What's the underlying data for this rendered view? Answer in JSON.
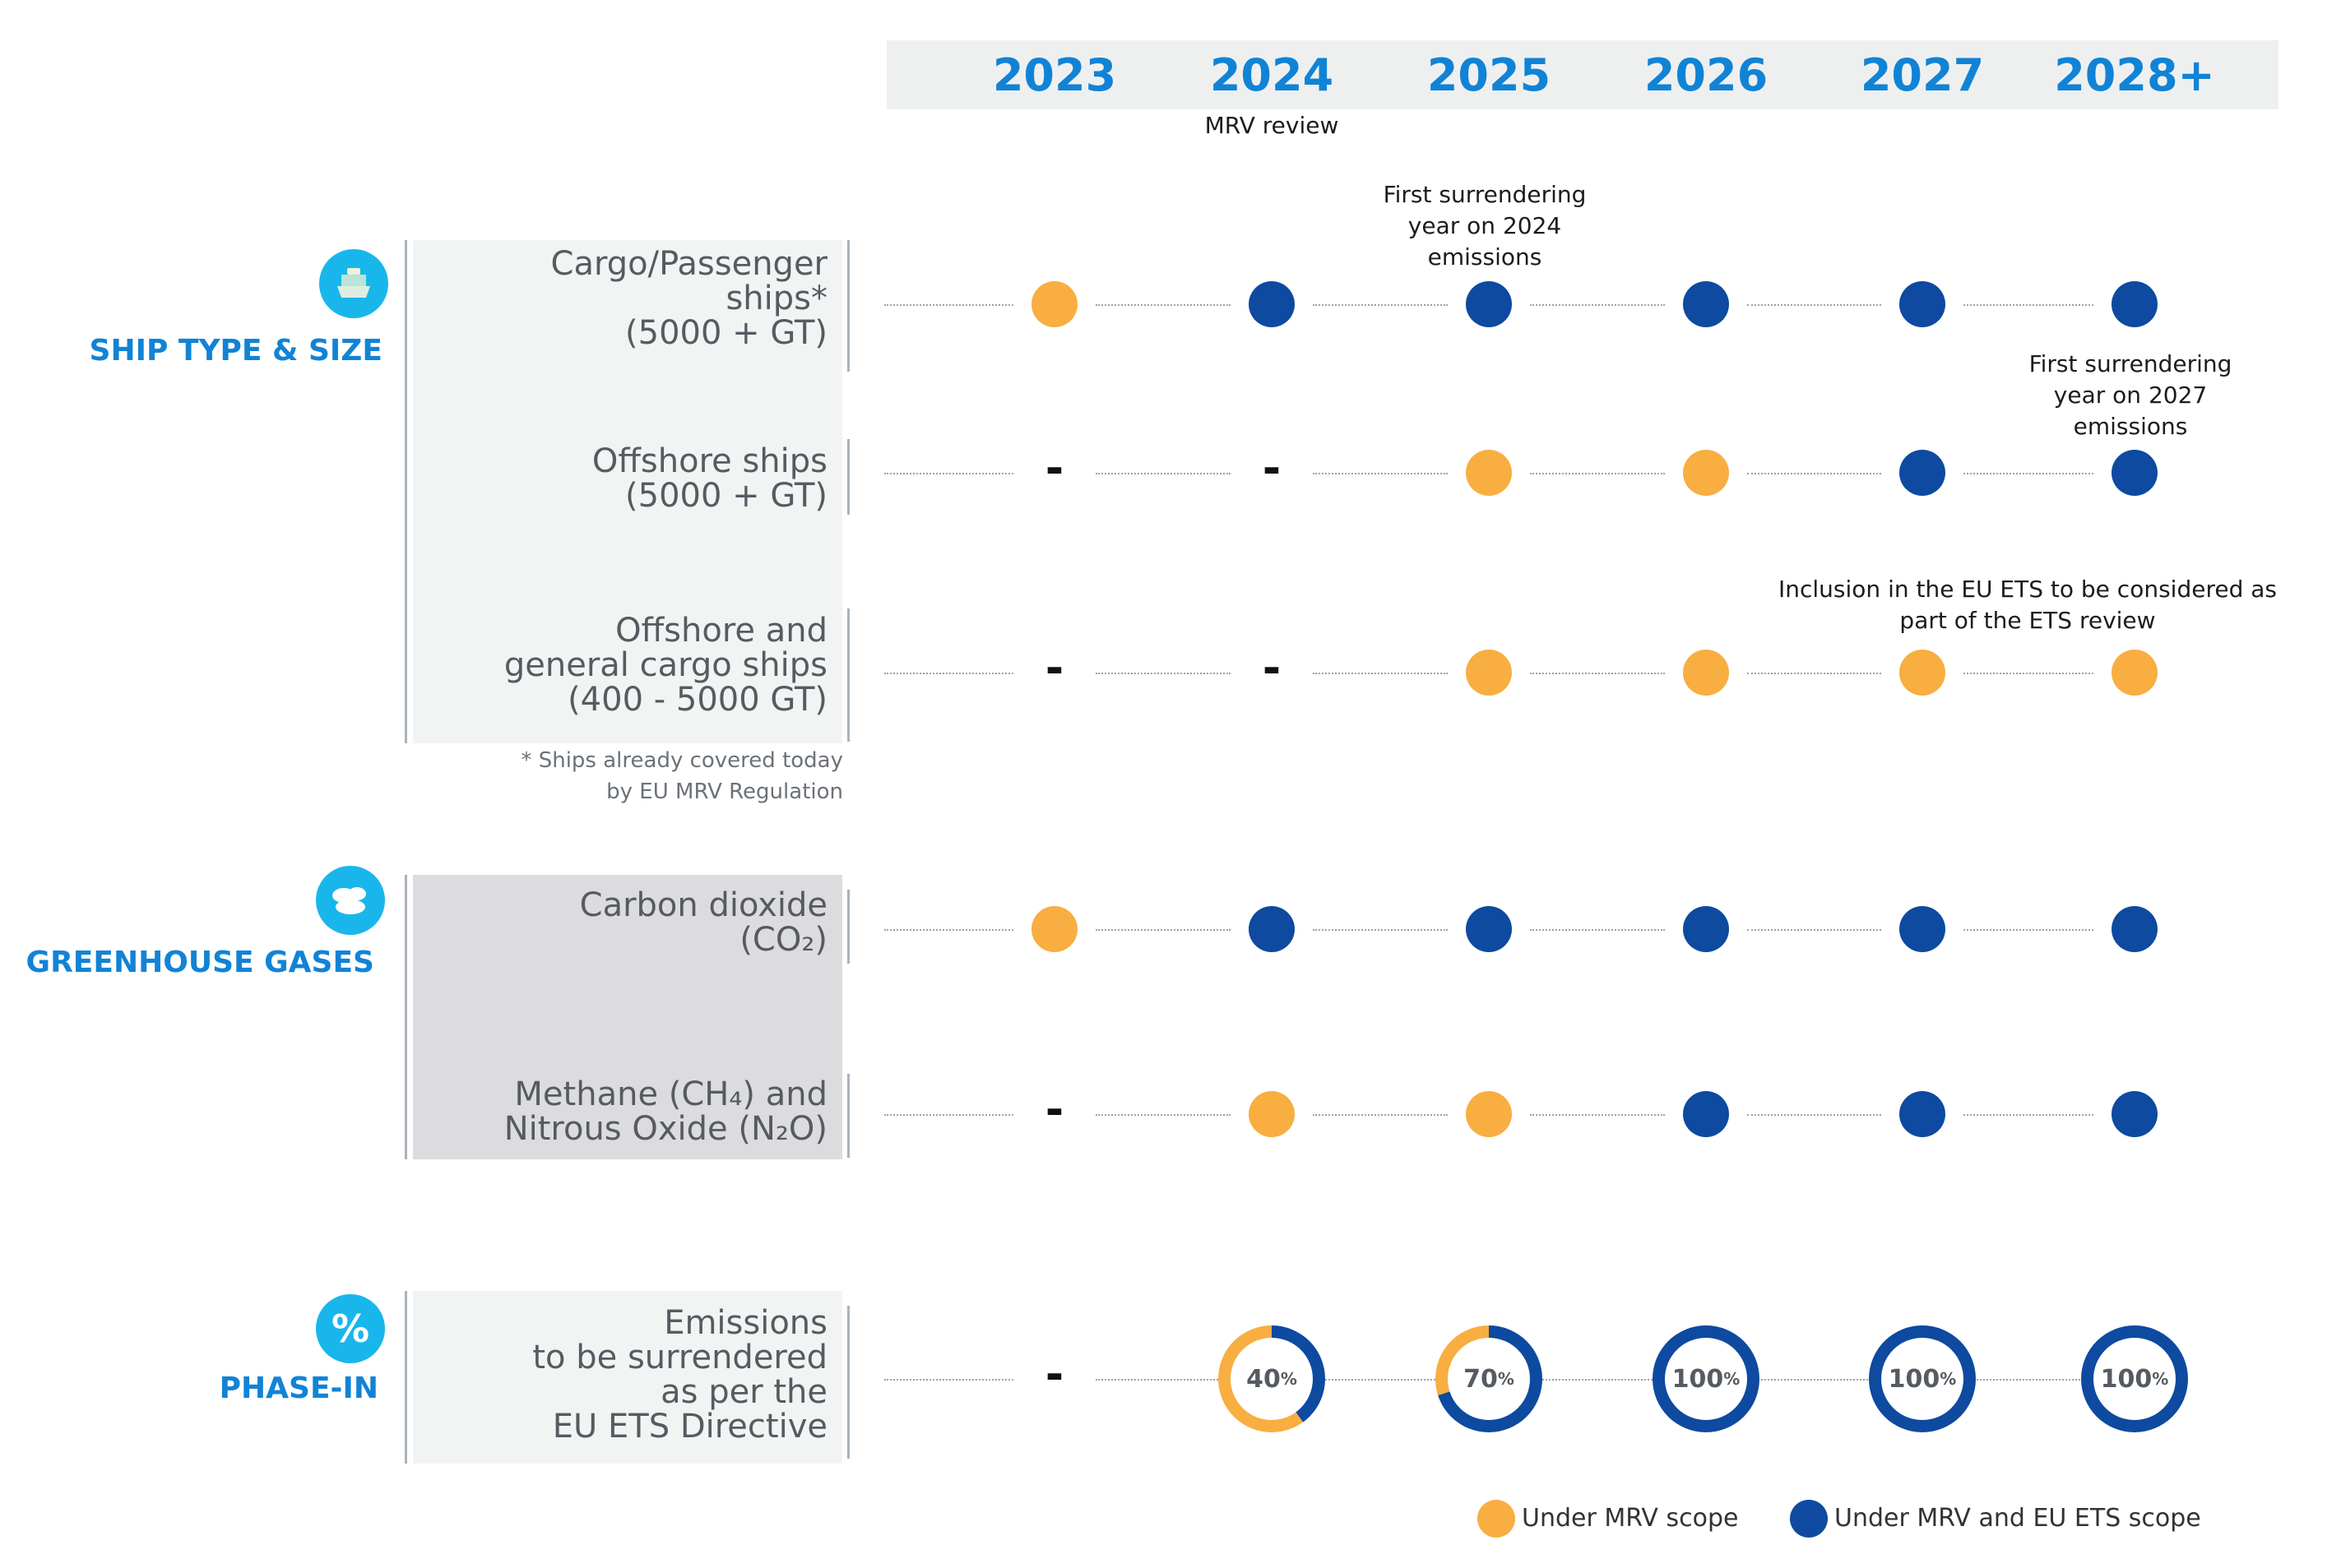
{
  "colors": {
    "mrv": "#f8ae41",
    "ets": "#0d4aa0",
    "accent": "#1183d6",
    "icon": "#19b6ec"
  },
  "years": [
    "2023",
    "2024",
    "2025",
    "2026",
    "2027",
    "2028+"
  ],
  "annotations": {
    "mrv_review": "MRV review",
    "first_surrender_2024": "First surrendering year on 2024 emissions",
    "first_surrender_2027": "First surrendering year on 2027 emissions",
    "inclusion_review": "Inclusion in the EU ETS to be considered as part of the ETS review"
  },
  "sections": {
    "ship": {
      "title": "SHIP TYPE & SIZE",
      "icon": "ship-icon"
    },
    "ghg": {
      "title": "GREENHOUSE GASES",
      "icon": "cloud-icon"
    },
    "phase": {
      "title": "PHASE-IN",
      "icon": "percent-icon",
      "symbol": "%"
    }
  },
  "rows": {
    "cargo": {
      "line1": "Cargo/Passenger",
      "line2": "ships*",
      "line3": "(5000 + GT)",
      "statuses": [
        "mrv",
        "ets",
        "ets",
        "ets",
        "ets",
        "ets"
      ]
    },
    "offshore": {
      "line1": "Offshore ships",
      "line2": "(5000 + GT)",
      "statuses": [
        "none",
        "none",
        "mrv",
        "mrv",
        "ets",
        "ets"
      ]
    },
    "general": {
      "line1": "Offshore and",
      "line2": "general cargo ships",
      "line3": "(400 - 5000 GT)",
      "statuses": [
        "none",
        "none",
        "mrv",
        "mrv",
        "mrv",
        "mrv"
      ]
    },
    "co2": {
      "line1": "Carbon dioxide",
      "line2": "(CO₂)",
      "statuses": [
        "mrv",
        "ets",
        "ets",
        "ets",
        "ets",
        "ets"
      ]
    },
    "ch4": {
      "line1": "Methane (CH₄) and",
      "line2": "Nitrous Oxide (N₂O)",
      "statuses": [
        "none",
        "mrv",
        "mrv",
        "ets",
        "ets",
        "ets"
      ]
    },
    "phasein": {
      "line1": "Emissions",
      "line2": "to be surrendered",
      "line3": "as per the",
      "line4": "EU ETS Directive"
    }
  },
  "dash": "-",
  "phase_in": {
    "y2023": "-",
    "values": [
      40,
      70,
      100,
      100,
      100
    ],
    "labels": [
      "40",
      "70",
      "100",
      "100",
      "100"
    ],
    "unit": "%"
  },
  "footnote": {
    "line1": "*   Ships already covered today",
    "line2": "by EU MRV Regulation"
  },
  "legend": {
    "mrv": "Under MRV scope",
    "ets": "Under MRV and EU ETS scope"
  }
}
